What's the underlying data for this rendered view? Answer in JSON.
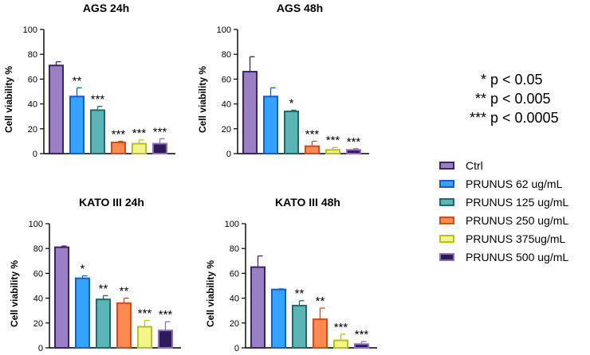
{
  "chart_data": [
    {
      "type": "bar",
      "title": "AGS 24h",
      "ylabel": "Cell viability %",
      "ylim": [
        0,
        100
      ],
      "yticks": [
        0,
        20,
        40,
        60,
        80,
        100
      ],
      "categories": [
        "Ctrl",
        "PRUNUS 62 ug/mL",
        "PRUNUS 125 ug/mL",
        "PRUNUS 250 ug/mL",
        "PRUNUS 375ug/mL",
        "PRUNUS 500 ug/mL"
      ],
      "values": [
        71,
        46,
        35,
        9,
        8,
        8
      ],
      "errors": [
        3,
        7,
        3,
        1,
        3,
        4
      ],
      "significance": [
        "",
        "**",
        "***",
        "***",
        "***",
        "***"
      ]
    },
    {
      "type": "bar",
      "title": "AGS 48h",
      "ylabel": "Cell viability %",
      "ylim": [
        0,
        100
      ],
      "yticks": [
        0,
        20,
        40,
        60,
        80,
        100
      ],
      "categories": [
        "Ctrl",
        "PRUNUS 62 ug/mL",
        "PRUNUS 125 ug/mL",
        "PRUNUS 250 ug/mL",
        "PRUNUS 375ug/mL",
        "PRUNUS 500 ug/mL"
      ],
      "values": [
        66,
        46,
        34,
        6,
        3,
        3
      ],
      "errors": [
        12,
        7,
        1,
        4,
        2,
        1
      ],
      "significance": [
        "",
        "",
        "*",
        "***",
        "***",
        "***"
      ]
    },
    {
      "type": "bar",
      "title": "KATO III 24h",
      "ylabel": "Cell viability %",
      "ylim": [
        0,
        100
      ],
      "yticks": [
        0,
        20,
        40,
        60,
        80,
        100
      ],
      "categories": [
        "Ctrl",
        "PRUNUS 62 ug/mL",
        "PRUNUS 125 ug/mL",
        "PRUNUS 250 ug/mL",
        "PRUNUS 375ug/mL",
        "PRUNUS 500 ug/mL"
      ],
      "values": [
        81,
        56,
        39,
        36,
        17,
        14
      ],
      "errors": [
        1,
        2,
        3,
        4,
        5,
        7
      ],
      "significance": [
        "",
        "*",
        "**",
        "**",
        "***",
        "***"
      ]
    },
    {
      "type": "bar",
      "title": "KATO III 48h",
      "ylabel": "Cell viability %",
      "ylim": [
        0,
        100
      ],
      "yticks": [
        0,
        20,
        40,
        60,
        80,
        100
      ],
      "categories": [
        "Ctrl",
        "PRUNUS 62 ug/mL",
        "PRUNUS 125 ug/mL",
        "PRUNUS 250 ug/mL",
        "PRUNUS 375ug/mL",
        "PRUNUS 500 ug/mL"
      ],
      "values": [
        65,
        47,
        34,
        23,
        6,
        3
      ],
      "errors": [
        9,
        0.5,
        4,
        9,
        5,
        2
      ],
      "significance": [
        "",
        "",
        "**",
        "**",
        "***",
        "***"
      ]
    }
  ],
  "legend": {
    "items": [
      {
        "label": "Ctrl",
        "fill": "#9b7fc4",
        "stroke": "#3b2466"
      },
      {
        "label": "PRUNUS 62 ug/mL",
        "fill": "#33a3ff",
        "stroke": "#1060c8"
      },
      {
        "label": "PRUNUS 125 ug/mL",
        "fill": "#5bb5b5",
        "stroke": "#1e6b6b"
      },
      {
        "label": "PRUNUS 250 ug/mL",
        "fill": "#ff8a50",
        "stroke": "#d44a18"
      },
      {
        "label": "PRUNUS 375ug/mL",
        "fill": "#f2f58c",
        "stroke": "#b4c21c"
      },
      {
        "label": "PRUNUS 500 ug/mL",
        "fill": "#2e1a58",
        "stroke": "#8a6fc0"
      }
    ]
  },
  "significance_key": [
    {
      "stars": "*",
      "text": "p < 0.05"
    },
    {
      "stars": "**",
      "text": "p < 0.005"
    },
    {
      "stars": "***",
      "text": "p < 0.0005"
    }
  ]
}
